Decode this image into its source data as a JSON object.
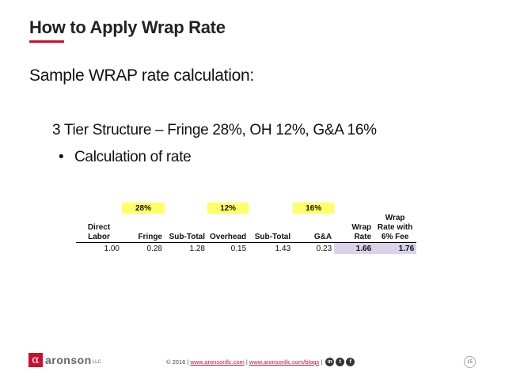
{
  "slide": {
    "title": "How to Apply Wrap Rate",
    "subtitle": "Sample WRAP rate calculation:",
    "structure_line": "3 Tier Structure – Fringe 28%, OH 12%, G&A 16%",
    "bullet": "Calculation of rate",
    "accent_color": "#c8102e"
  },
  "table": {
    "rates": {
      "fringe": "28%",
      "overhead": "12%",
      "ga": "16%"
    },
    "headers": {
      "direct_labor": [
        "Direct",
        "Labor"
      ],
      "fringe": "Fringe",
      "subtotal1": "Sub-Total",
      "overhead": "Overhead",
      "subtotal2": "Sub-Total",
      "ga": "G&A",
      "wrap_rate": [
        "Wrap",
        "Rate"
      ],
      "wrap_fee": [
        "Wrap",
        "Rate with",
        "6% Fee"
      ]
    },
    "values": {
      "direct_labor": "1.00",
      "fringe": "0.28",
      "subtotal1": "1.28",
      "overhead": "0.15",
      "subtotal2": "1.43",
      "ga": "0.23",
      "wrap_rate": "1.66",
      "wrap_fee": "1.76"
    }
  },
  "footer": {
    "logo_mark": "α",
    "logo_text": "aronson",
    "logo_suffix": "LLC",
    "copyright": "© 2016 |",
    "link1": "www.aronsonllc.com",
    "sep": "|",
    "link2": "www.aronsonllc.com/blogs",
    "sep2": "|",
    "social": [
      "in",
      "t",
      "f"
    ],
    "page_number": "15"
  }
}
